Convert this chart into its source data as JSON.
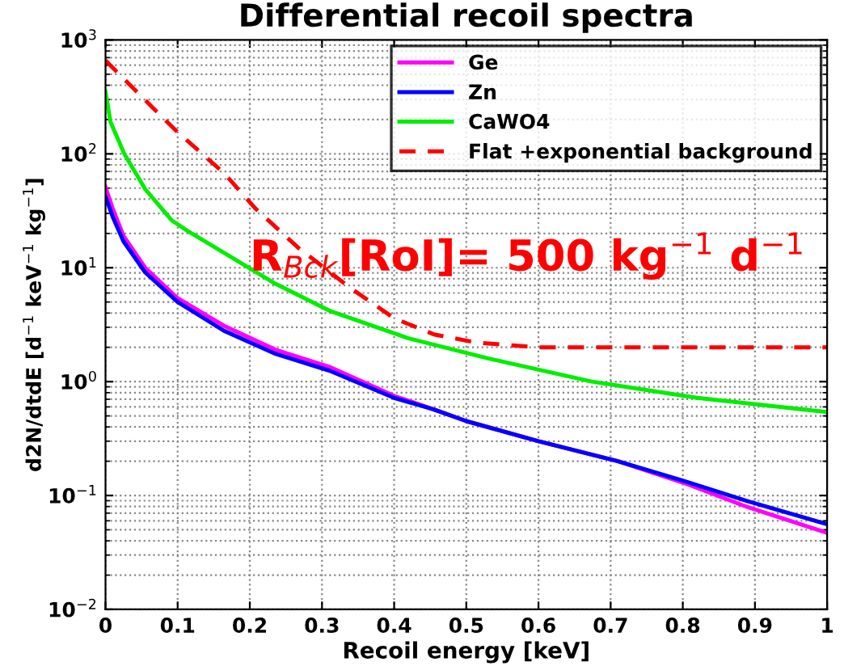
{
  "chart_data": {
    "type": "line",
    "title": "Differential recoil spectra",
    "xlabel": "Recoil energy [keV]",
    "ylabel": "d2N/dtdE [d$^{−1}$ keV$^{−1}$ kg$^{−1}$]",
    "series": [
      {
        "name": "Ge",
        "color": "#ff00ff",
        "x": [
          0,
          0.01,
          0.025,
          0.055,
          0.1,
          0.164,
          0.236,
          0.31,
          0.4,
          0.455,
          0.5,
          0.6,
          0.71,
          0.8,
          0.89,
          1.0
        ],
        "values": [
          51,
          33,
          19,
          10,
          5.4,
          3.1,
          1.9,
          1.35,
          0.75,
          0.57,
          0.45,
          0.3,
          0.2,
          0.13,
          0.079,
          0.047
        ]
      },
      {
        "name": "Zn",
        "color": "#0000ff",
        "x": [
          0,
          0.01,
          0.025,
          0.055,
          0.1,
          0.164,
          0.236,
          0.31,
          0.4,
          0.455,
          0.5,
          0.6,
          0.71,
          0.8,
          0.89,
          1.0
        ],
        "values": [
          42,
          28,
          17,
          9.1,
          5.0,
          2.8,
          1.75,
          1.25,
          0.72,
          0.57,
          0.45,
          0.3,
          0.2,
          0.135,
          0.089,
          0.056
        ]
      },
      {
        "name": "CaWO4",
        "color": "#00ee00",
        "x": [
          0,
          0.007,
          0.026,
          0.055,
          0.092,
          0.114,
          0.236,
          0.31,
          0.42,
          0.53,
          0.674,
          0.82,
          1.0
        ],
        "values": [
          350,
          190,
          100,
          49,
          26,
          21,
          7.2,
          4.2,
          2.4,
          1.6,
          1.0,
          0.72,
          0.54
        ]
      },
      {
        "name": "Flat +exponential background",
        "color": "#ff0000",
        "line_style": "dashed",
        "x": [
          0,
          0.077,
          0.1,
          0.164,
          0.208,
          0.267,
          0.34,
          0.4,
          0.455,
          0.514,
          0.6,
          0.8,
          1.0
        ],
        "values": [
          660,
          215,
          155,
          68,
          33,
          15,
          6.6,
          3.6,
          2.6,
          2.2,
          2.0,
          2.0,
          2.0
        ]
      }
    ],
    "xlim": [
      0,
      1
    ],
    "xticks": [
      {
        "value": 0,
        "label": "0"
      },
      0.1,
      0.2,
      0.3,
      0.4,
      0.5,
      0.6,
      0.7,
      0.8,
      0.9,
      {
        "value": 1,
        "label": "1"
      }
    ],
    "log": true,
    "ylim": [
      0.01,
      1000
    ],
    "yticks": [
      {
        "value": 0.01,
        "label": "10$^{−2}$"
      },
      {
        "value": 0.1,
        "label": "10$^{−1}$"
      },
      {
        "value": 1,
        "label": "10$^{0}$"
      },
      {
        "value": 10,
        "label": "10$^{1}$"
      },
      {
        "value": 100,
        "label": "10$^{2}$"
      },
      {
        "value": 1000,
        "label": "10$^{3}$"
      }
    ],
    "grid": true,
    "legend": "top right",
    "annotations": [
      "R$_{Bck}$[RoI]= 500 kg$^{−1}$ d$^{−1}$"
    ]
  }
}
